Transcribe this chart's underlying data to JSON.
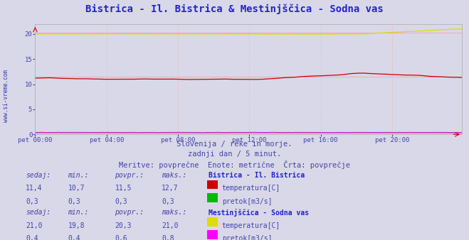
{
  "title": "Bistrica - Il. Bistrica & Mestinjščica - Sodna vas",
  "title_color": "#2222cc",
  "title_fontsize": 10,
  "bg_color": "#d8d8e8",
  "plot_bg_color": "#d8d8e8",
  "grid_color_v": "#ffaaaa",
  "grid_color_h": "#dddddd",
  "axis_label_color": "#4444aa",
  "xlabel_ticks": [
    "pet 00:00",
    "pet 04:00",
    "pet 08:00",
    "pet 12:00",
    "pet 16:00",
    "pet 20:00"
  ],
  "xlabel_tick_positions": [
    0,
    48,
    96,
    144,
    192,
    240
  ],
  "n_points": 288,
  "ylim": [
    0,
    22
  ],
  "yticks": [
    0,
    5,
    10,
    15,
    20
  ],
  "subtitle_lines": [
    "Slovenija / reke in morje.",
    "zadnji dan / 5 minut.",
    "Meritve: povprečne  Enote: metrične  Črta: povprečje"
  ],
  "subtitle_color": "#4444aa",
  "subtitle_fontsize": 7.5,
  "watermark": "www.si-vreme.com",
  "watermark_color": "#888899",
  "sidebar_text": "www.si-vreme.com",
  "sidebar_color": "#3333aa",
  "legend_data": [
    {
      "station": "Bistrica - Il. Bistrica",
      "station_color": "#2222cc",
      "series": [
        {
          "label": "temperatura[C]",
          "color": "#cc0000",
          "sedaj": "11,4",
          "min": "10,7",
          "povpr": "11,5",
          "maks": "12,7"
        },
        {
          "label": "pretok[m3/s]",
          "color": "#00bb00",
          "sedaj": "0,3",
          "min": "0,3",
          "povpr": "0,3",
          "maks": "0,3"
        }
      ]
    },
    {
      "station": "Mestinjščica - Sodna vas",
      "station_color": "#2222cc",
      "series": [
        {
          "label": "temperatura[C]",
          "color": "#dddd00",
          "sedaj": "21,0",
          "min": "19,8",
          "povpr": "20,3",
          "maks": "21,0"
        },
        {
          "label": "pretok[m3/s]",
          "color": "#ff00ff",
          "sedaj": "0,4",
          "min": "0,4",
          "povpr": "0,6",
          "maks": "0,8"
        }
      ]
    }
  ],
  "avg_lines": {
    "bistrica_temp": 11.5,
    "mestinjscica_temp": 20.3
  },
  "line_colors": {
    "bistrica_temp": "#cc0000",
    "bistrica_flow": "#00bb00",
    "mestinjscica_temp": "#dddd00",
    "mestinjscica_flow": "#ff00ff"
  },
  "avg_line_color": "#ff6666"
}
